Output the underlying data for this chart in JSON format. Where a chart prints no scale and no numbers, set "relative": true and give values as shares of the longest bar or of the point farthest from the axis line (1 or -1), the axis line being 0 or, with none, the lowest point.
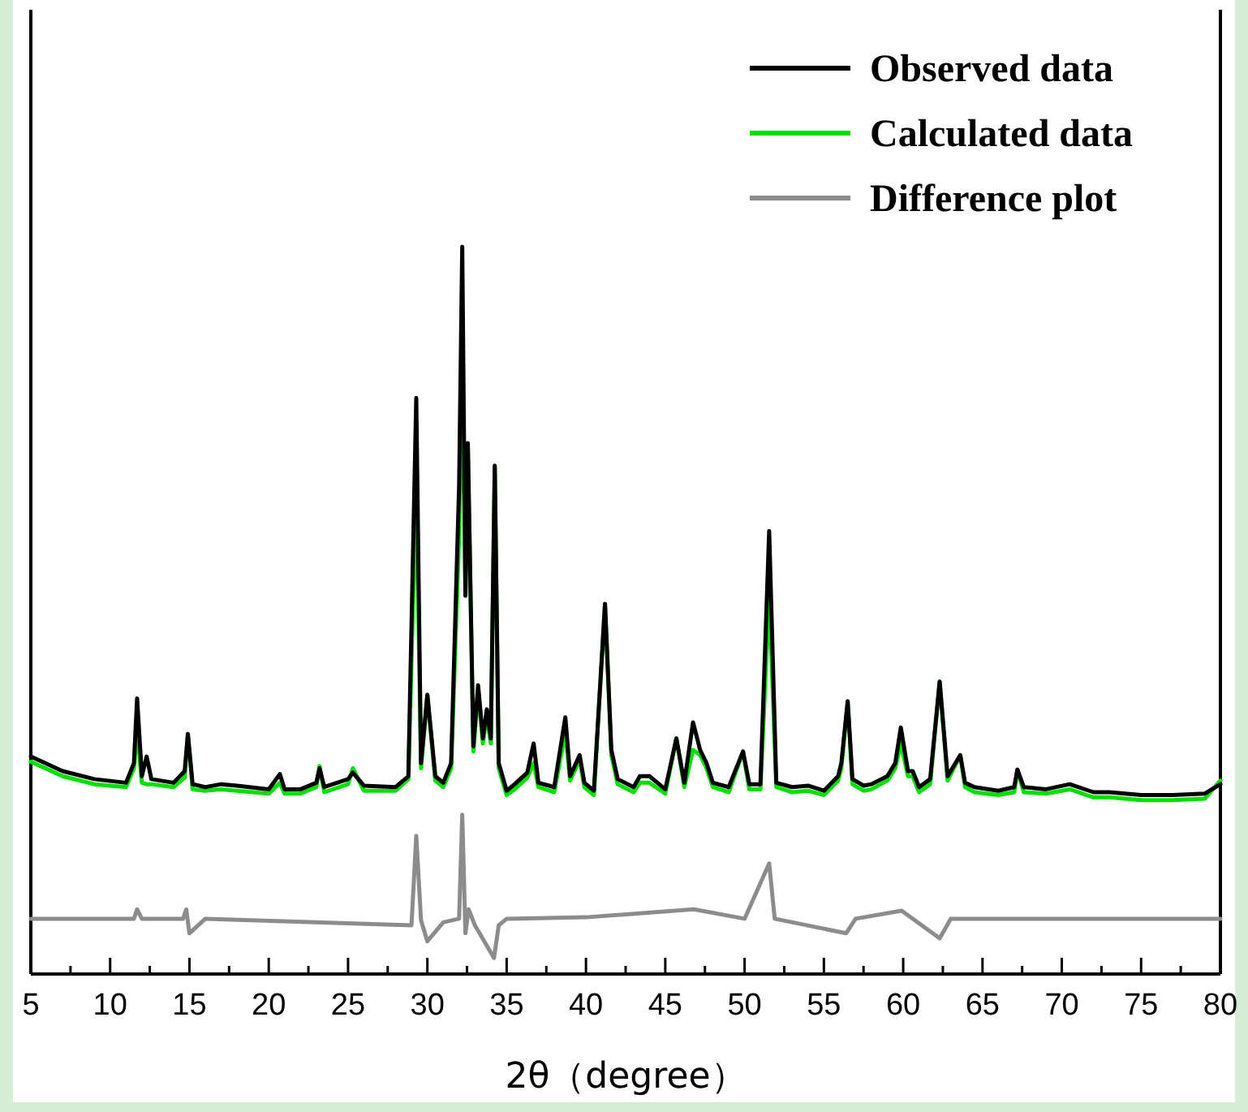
{
  "chart_data": {
    "type": "line",
    "xlabel": "2θ（degree）",
    "relative": true,
    "legend": "top right",
    "line_style": "solid",
    "tick_labels": "x",
    "xlim": [
      5,
      80
    ],
    "xticks": [
      5,
      {
        "value": 7.5,
        "label": null
      },
      10,
      {
        "value": 12.5,
        "label": null
      },
      15,
      {
        "value": 17.5,
        "label": null
      },
      20,
      {
        "value": 22.5,
        "label": null
      },
      25,
      {
        "value": 27.5,
        "label": null
      },
      30,
      {
        "value": 32.5,
        "label": null
      },
      35,
      {
        "value": 37.5,
        "label": null
      },
      40,
      {
        "value": 42.5,
        "label": null
      },
      45,
      {
        "value": 47.5,
        "label": null
      },
      50,
      {
        "value": 52.5,
        "label": null
      },
      55,
      {
        "value": 57.5,
        "label": null
      },
      60,
      {
        "value": 62.5,
        "label": null
      },
      65,
      {
        "value": 67.5,
        "label": null
      },
      70,
      {
        "value": 72.5,
        "label": null
      },
      75,
      {
        "value": 77.5,
        "label": null
      },
      80
    ],
    "series": [
      {
        "name": "Observed data",
        "color": "#000000",
        "x": [
          5,
          7,
          9,
          11,
          11.5,
          11.7,
          12.0,
          12.3,
          12.6,
          14,
          14.7,
          14.9,
          15.2,
          16,
          17,
          18,
          20,
          20.7,
          21,
          22,
          23,
          23.2,
          23.5,
          25,
          25.3,
          26,
          28,
          28.8,
          29.3,
          29.6,
          30.0,
          30.5,
          31,
          31.5,
          32.0,
          32.2,
          32.4,
          32.55,
          32.9,
          33.2,
          33.5,
          33.75,
          34.0,
          34.25,
          34.5,
          35,
          35.5,
          36.3,
          36.7,
          37,
          38,
          38.7,
          39.0,
          39.6,
          39.9,
          40.5,
          41.2,
          41.6,
          42,
          43,
          43.4,
          44,
          45,
          45.7,
          46.2,
          46.75,
          47.2,
          47.6,
          48,
          49,
          49.9,
          50.3,
          51,
          51.55,
          52.0,
          53,
          54,
          55,
          55.9,
          56.1,
          56.5,
          56.8,
          57.5,
          58,
          59,
          59.5,
          59.85,
          60.3,
          60.6,
          61,
          61.7,
          62.3,
          62.8,
          63.6,
          63.9,
          64.5,
          66,
          67,
          67.2,
          67.6,
          69,
          70.5,
          72,
          73,
          75,
          77,
          79,
          80
        ],
        "values": [
          0.299,
          0.279,
          0.268,
          0.263,
          0.29,
          0.379,
          0.272,
          0.299,
          0.268,
          0.263,
          0.279,
          0.33,
          0.261,
          0.257,
          0.261,
          0.259,
          0.254,
          0.275,
          0.254,
          0.254,
          0.263,
          0.283,
          0.257,
          0.268,
          0.277,
          0.259,
          0.257,
          0.272,
          0.792,
          0.29,
          0.384,
          0.272,
          0.263,
          0.29,
          0.67,
          1.0,
          0.52,
          0.73,
          0.313,
          0.397,
          0.324,
          0.364,
          0.324,
          0.699,
          0.29,
          0.252,
          0.261,
          0.277,
          0.317,
          0.263,
          0.257,
          0.353,
          0.272,
          0.301,
          0.263,
          0.252,
          0.509,
          0.308,
          0.268,
          0.257,
          0.272,
          0.272,
          0.254,
          0.324,
          0.263,
          0.346,
          0.308,
          0.29,
          0.263,
          0.257,
          0.306,
          0.261,
          0.261,
          0.609,
          0.263,
          0.257,
          0.259,
          0.252,
          0.272,
          0.29,
          0.375,
          0.268,
          0.259,
          0.261,
          0.272,
          0.29,
          0.339,
          0.279,
          0.279,
          0.257,
          0.268,
          0.402,
          0.272,
          0.301,
          0.263,
          0.257,
          0.252,
          0.257,
          0.281,
          0.257,
          0.254,
          0.261,
          0.25,
          0.25,
          0.246,
          0.246,
          0.248,
          0.261
        ]
      },
      {
        "name": "Calculated data",
        "color": "#00e000",
        "x": [
          5,
          7,
          9,
          11,
          11.5,
          11.7,
          12.0,
          12.3,
          12.6,
          14,
          14.7,
          14.9,
          15.2,
          16,
          17,
          18,
          20,
          20.7,
          21,
          22,
          23,
          23.2,
          23.5,
          25,
          25.3,
          26,
          28,
          28.8,
          29.3,
          29.6,
          30.0,
          30.5,
          31,
          31.5,
          32.0,
          32.2,
          32.4,
          32.55,
          32.9,
          33.2,
          33.5,
          33.75,
          34.0,
          34.25,
          34.5,
          35,
          35.5,
          36.3,
          36.7,
          37,
          38,
          38.7,
          39.0,
          39.6,
          39.9,
          40.5,
          41.2,
          41.6,
          42,
          43,
          43.4,
          44,
          45,
          45.7,
          46.2,
          46.75,
          47.2,
          47.6,
          48,
          49,
          49.9,
          50.3,
          51,
          51.55,
          52.0,
          53,
          54,
          55,
          55.9,
          56.1,
          56.5,
          56.8,
          57.5,
          58,
          59,
          59.5,
          59.85,
          60.3,
          60.6,
          61,
          61.7,
          62.3,
          62.8,
          63.6,
          63.9,
          64.5,
          66,
          67,
          67.2,
          67.6,
          69,
          70.5,
          72,
          73,
          75,
          77,
          79,
          80
        ],
        "values": [
          0.292,
          0.272,
          0.261,
          0.257,
          0.283,
          0.335,
          0.263,
          0.261,
          0.261,
          0.257,
          0.27,
          0.33,
          0.254,
          0.252,
          0.254,
          0.252,
          0.248,
          0.263,
          0.248,
          0.248,
          0.257,
          0.286,
          0.25,
          0.261,
          0.283,
          0.252,
          0.252,
          0.268,
          0.674,
          0.283,
          0.384,
          0.266,
          0.257,
          0.283,
          0.6,
          0.839,
          0.52,
          0.73,
          0.306,
          0.39,
          0.317,
          0.357,
          0.317,
          0.699,
          0.283,
          0.246,
          0.254,
          0.27,
          0.29,
          0.257,
          0.25,
          0.333,
          0.266,
          0.295,
          0.257,
          0.246,
          0.509,
          0.301,
          0.261,
          0.25,
          0.263,
          0.263,
          0.248,
          0.324,
          0.257,
          0.308,
          0.301,
          0.283,
          0.257,
          0.25,
          0.306,
          0.254,
          0.254,
          0.52,
          0.257,
          0.25,
          0.252,
          0.246,
          0.266,
          0.283,
          0.375,
          0.261,
          0.252,
          0.254,
          0.266,
          0.283,
          0.317,
          0.272,
          0.272,
          0.25,
          0.261,
          0.402,
          0.266,
          0.301,
          0.257,
          0.25,
          0.246,
          0.25,
          0.281,
          0.25,
          0.248,
          0.254,
          0.243,
          0.243,
          0.239,
          0.239,
          0.241,
          0.266
        ]
      },
      {
        "name": "Difference plot",
        "color": "#8c8c8c",
        "x": [
          5,
          11.5,
          11.7,
          12,
          14.6,
          14.8,
          15.0,
          16,
          29.0,
          29.3,
          29.6,
          30.0,
          31,
          32.0,
          32.2,
          32.4,
          32.6,
          33,
          34.2,
          34.5,
          35,
          40,
          46.8,
          50,
          51.55,
          51.9,
          56.4,
          57,
          59.9,
          62.3,
          63,
          70,
          80
        ],
        "values": [
          0.076,
          0.076,
          0.089,
          0.076,
          0.076,
          0.089,
          0.056,
          0.076,
          0.067,
          0.19,
          0.074,
          0.045,
          0.071,
          0.076,
          0.219,
          0.056,
          0.089,
          0.067,
          0.022,
          0.067,
          0.076,
          0.078,
          0.089,
          0.076,
          0.152,
          0.076,
          0.056,
          0.076,
          0.087,
          0.049,
          0.076,
          0.076,
          0.076
        ]
      }
    ]
  }
}
